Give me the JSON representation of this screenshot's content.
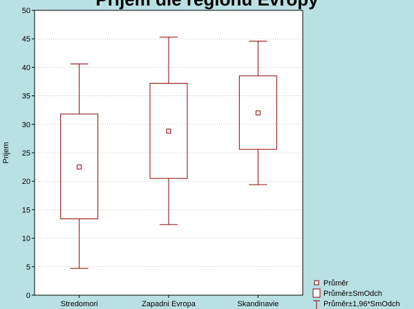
{
  "title": "Prijem dle regionu Evropy",
  "chart_data": {
    "type": "box",
    "title": "Prijem dle regionu Evropy",
    "xlabel": "",
    "ylabel": "Prijem",
    "ylim": [
      0,
      50
    ],
    "yticks": [
      0,
      5,
      10,
      15,
      20,
      25,
      30,
      35,
      40,
      45,
      50
    ],
    "grid": true,
    "categories": [
      "Stredomori",
      "Zapadni Evropa",
      "Skandinavie"
    ],
    "boxes": [
      {
        "mean": 22.5,
        "box_low": 13.4,
        "box_high": 31.8,
        "whisker_low": 4.7,
        "whisker_high": 40.6
      },
      {
        "mean": 28.8,
        "box_low": 20.5,
        "box_high": 37.2,
        "whisker_low": 12.4,
        "whisker_high": 45.3
      },
      {
        "mean": 32.0,
        "box_low": 25.6,
        "box_high": 38.5,
        "whisker_low": 19.4,
        "whisker_high": 44.6
      }
    ],
    "legend": {
      "position": "bottom-right",
      "items": [
        "Průměr",
        "Průměr±SmOdch",
        "Průměr±1,96*SmOdch"
      ]
    },
    "colors": {
      "series": "#8b0000",
      "plot_bg": "#ffffff",
      "page_bg": "#b9e0e2",
      "grid": "#999999"
    }
  }
}
